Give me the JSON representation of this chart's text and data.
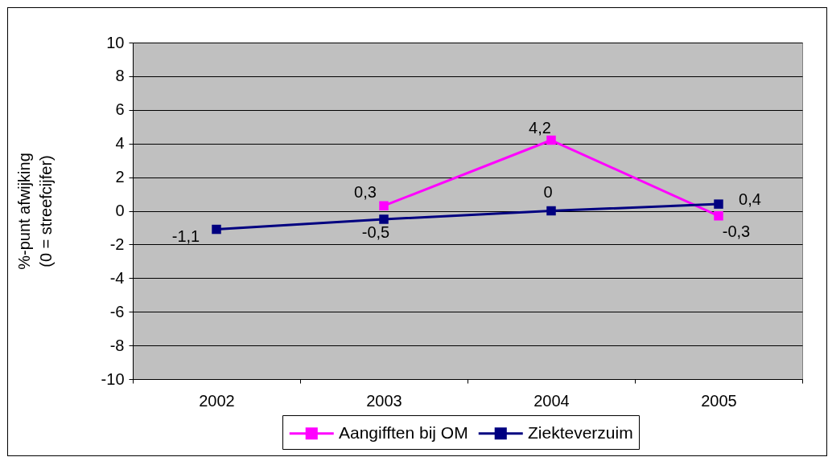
{
  "chart_data": {
    "type": "line",
    "categories": [
      "2002",
      "2003",
      "2004",
      "2005"
    ],
    "series": [
      {
        "name": "Aangifften bij OM",
        "color": "#ff00ff",
        "values": [
          null,
          0.3,
          4.2,
          -0.3
        ],
        "value_labels": [
          null,
          "0,3",
          "4,2",
          "-0,3"
        ]
      },
      {
        "name": "Ziekteverzuim",
        "color": "#000080",
        "values": [
          -1.1,
          -0.5,
          0,
          0.4
        ],
        "value_labels": [
          "-1,1",
          "-0,5",
          "0",
          "0,4"
        ]
      }
    ],
    "ylabel": "%-punt afwijking\n(0 = streefcijfer)",
    "ylim": [
      -10,
      10
    ],
    "yticks": [
      -10,
      -8,
      -6,
      -4,
      -2,
      0,
      2,
      4,
      6,
      8,
      10
    ],
    "grid": "y",
    "legend": "bottom",
    "marker": "square",
    "line_style": "solid"
  }
}
